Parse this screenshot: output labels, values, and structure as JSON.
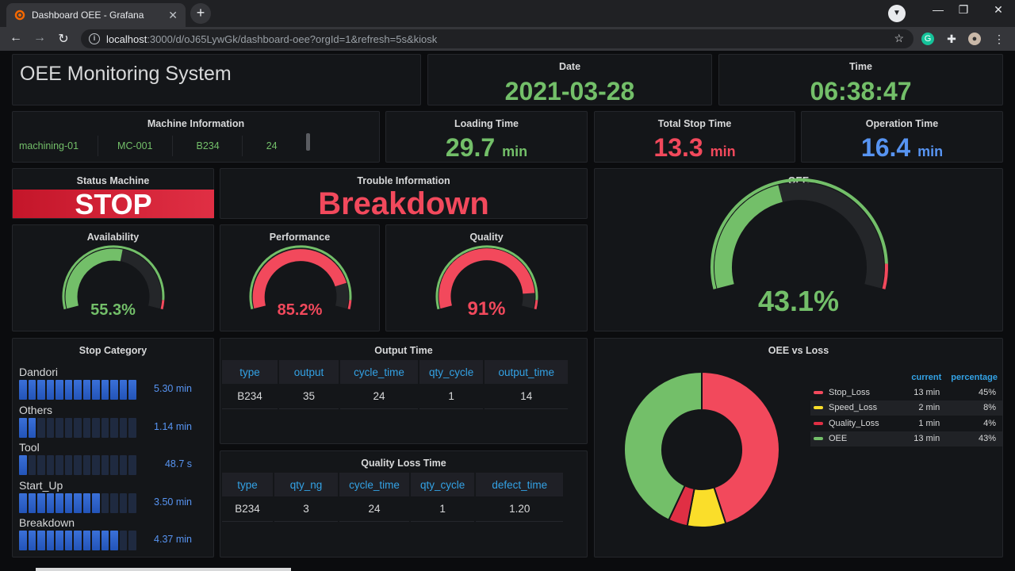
{
  "browser": {
    "tab_title": "Dashboard OEE - Grafana",
    "url_host": "localhost",
    "url_path": ":3000/d/oJ65LywGk/dashboard-oee?orgId=1&refresh=5s&kiosk"
  },
  "header": {
    "title": "OEE Monitoring System",
    "date_label": "Date",
    "date_value": "2021-03-28",
    "time_label": "Time",
    "time_value": "06:38:47"
  },
  "machine_info": {
    "title": "Machine Information",
    "cells": [
      "machining-01",
      "MC-001",
      "B234",
      "24"
    ]
  },
  "times": {
    "loading_label": "Loading Time",
    "loading_value": "29.7",
    "loading_unit": "min",
    "stop_label": "Total Stop Time",
    "stop_value": "13.3",
    "stop_unit": "min",
    "operation_label": "Operation Time",
    "operation_value": "16.4",
    "operation_unit": "min"
  },
  "status": {
    "title": "Status Machine",
    "value": "STOP"
  },
  "trouble": {
    "title": "Trouble Information",
    "value": "Breakdown"
  },
  "gauges": {
    "availability": {
      "title": "Availability",
      "label": "55.3%",
      "percent": 55.3
    },
    "performance": {
      "title": "Performance",
      "label": "85.2%",
      "percent": 85.2
    },
    "quality": {
      "title": "Quality",
      "label": "91%",
      "percent": 91
    },
    "oee": {
      "title": "OEE",
      "label": "43.1%",
      "percent": 43.1
    }
  },
  "stop_category": {
    "title": "Stop Category",
    "items": [
      {
        "name": "Dandori",
        "value": "5.30 min",
        "fill": 13
      },
      {
        "name": "Others",
        "value": "1.14 min",
        "fill": 2
      },
      {
        "name": "Tool",
        "value": "48.7 s",
        "fill": 1
      },
      {
        "name": "Start_Up",
        "value": "3.50 min",
        "fill": 9
      },
      {
        "name": "Breakdown",
        "value": "4.37 min",
        "fill": 11
      }
    ],
    "segments": 13
  },
  "output_time": {
    "title": "Output Time",
    "headers": [
      "type",
      "output",
      "cycle_time",
      "qty_cycle",
      "output_time"
    ],
    "rows": [
      [
        "B234",
        "35",
        "24",
        "1",
        "14"
      ]
    ]
  },
  "quality_loss": {
    "title": "Quality Loss Time",
    "headers": [
      "type",
      "qty_ng",
      "cycle_time",
      "qty_cycle",
      "defect_time"
    ],
    "rows": [
      [
        "B234",
        "3",
        "24",
        "1",
        "1.20"
      ]
    ]
  },
  "oee_vs_loss": {
    "title": "OEE vs Loss",
    "legend_headers": [
      "current",
      "percentage"
    ],
    "items": [
      {
        "name": "Stop_Loss",
        "current": "13 min",
        "percentage": "45%",
        "value": 45,
        "color": "#f2495c"
      },
      {
        "name": "Speed_Loss",
        "current": "2 min",
        "percentage": "8%",
        "value": 8,
        "color": "#fade2a"
      },
      {
        "name": "Quality_Loss",
        "current": "1 min",
        "percentage": "4%",
        "value": 4,
        "color": "#e02f44"
      },
      {
        "name": "OEE",
        "current": "13 min",
        "percentage": "43%",
        "value": 43,
        "color": "#73bf69"
      }
    ]
  }
}
